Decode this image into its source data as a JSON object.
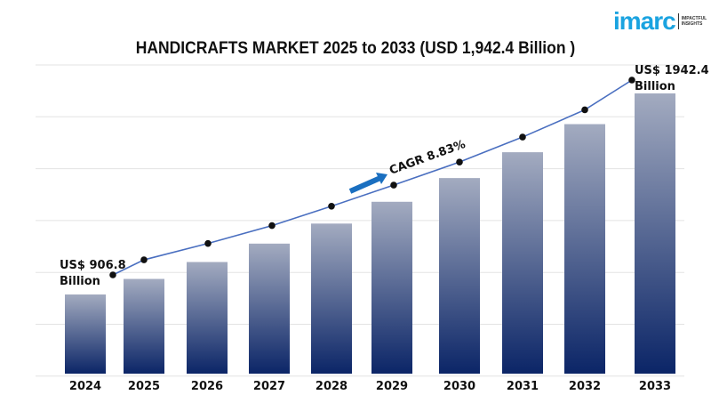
{
  "logo": {
    "text": "imarc",
    "tagline_1": "IMPACTFUL",
    "tagline_2": "INSIGHTS"
  },
  "chart_data": {
    "type": "bar",
    "title": "HANDICRAFTS MARKET 2025 to 2033 (USD 1,942.4 Billion )",
    "xlabel": "",
    "ylabel": "",
    "categories": [
      "2024",
      "2025",
      "2026",
      "2027",
      "2028",
      "2029",
      "2030",
      "2031",
      "2032",
      "2033"
    ],
    "values": [
      906.8,
      986.9,
      1074.0,
      1168.8,
      1272.0,
      1384.3,
      1506.5,
      1639.5,
      1784.2,
      1942.4
    ],
    "line_overlay": true,
    "annotations": {
      "start_label_1": "US$ 906.8",
      "start_label_2": "Billion",
      "end_label_1": "US$ 1942.4",
      "end_label_2": "Billion",
      "cagr": "CAGR 8.83%"
    },
    "grid": true,
    "legend": "none",
    "colors": {
      "bar_top": "#a3abc0",
      "bar_bottom": "#0b2567",
      "line": "#4a6fc0",
      "arrow": "#1a6fc0",
      "point": "#111111"
    }
  }
}
